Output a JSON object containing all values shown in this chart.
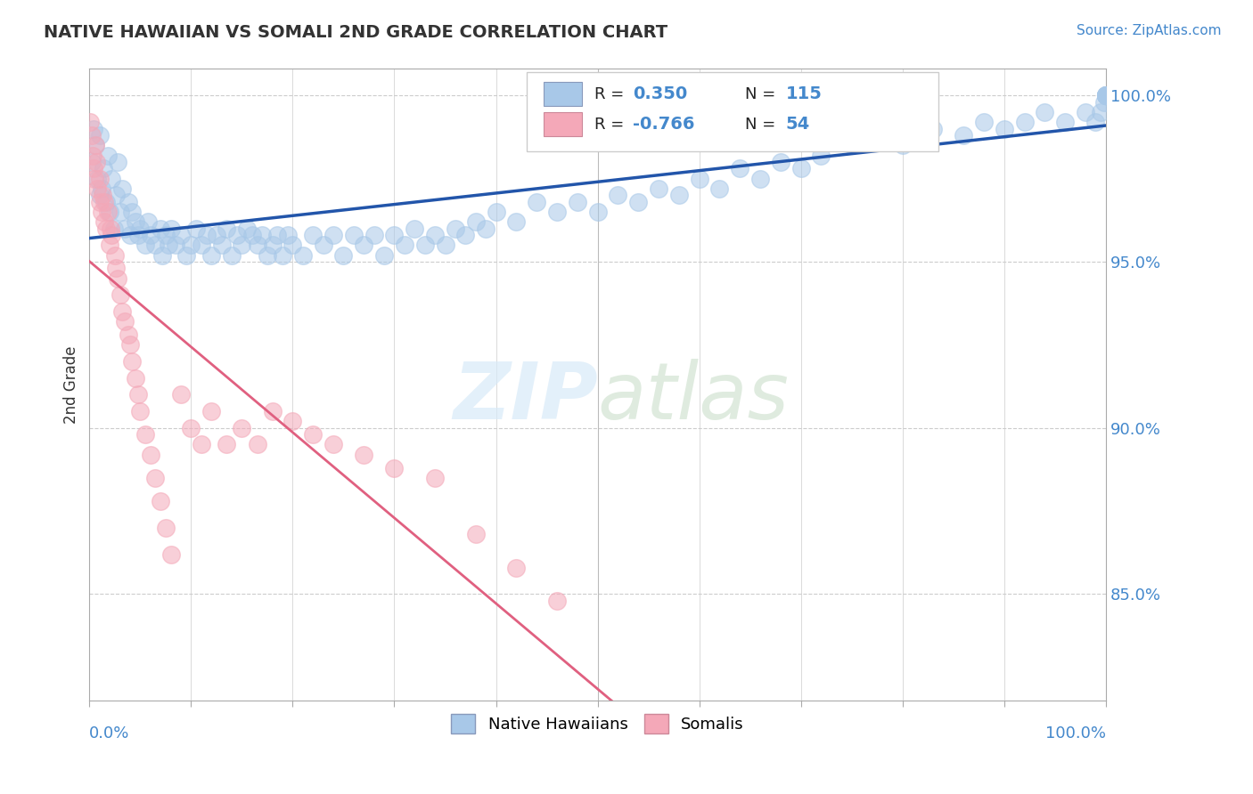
{
  "title": "NATIVE HAWAIIAN VS SOMALI 2ND GRADE CORRELATION CHART",
  "source": "Source: ZipAtlas.com",
  "ylabel": "2nd Grade",
  "ylabel_right_ticks": [
    "100.0%",
    "95.0%",
    "90.0%",
    "85.0%"
  ],
  "ylabel_right_vals": [
    1.0,
    0.95,
    0.9,
    0.85
  ],
  "xmin": 0.0,
  "xmax": 1.0,
  "ymin": 0.818,
  "ymax": 1.008,
  "blue_R": 0.35,
  "blue_N": 115,
  "pink_R": -0.766,
  "pink_N": 54,
  "blue_color": "#A8C8E8",
  "pink_color": "#F4A8B8",
  "blue_line_color": "#2255AA",
  "pink_line_color": "#E06080",
  "legend_label_blue": "Native Hawaiians",
  "legend_label_pink": "Somalis",
  "background_color": "#ffffff",
  "blue_scatter_x": [
    0.002,
    0.004,
    0.006,
    0.008,
    0.01,
    0.01,
    0.012,
    0.014,
    0.016,
    0.018,
    0.02,
    0.022,
    0.024,
    0.026,
    0.028,
    0.03,
    0.032,
    0.035,
    0.038,
    0.04,
    0.042,
    0.045,
    0.048,
    0.05,
    0.055,
    0.058,
    0.06,
    0.065,
    0.07,
    0.072,
    0.075,
    0.078,
    0.08,
    0.085,
    0.09,
    0.095,
    0.1,
    0.105,
    0.11,
    0.115,
    0.12,
    0.125,
    0.13,
    0.135,
    0.14,
    0.145,
    0.15,
    0.155,
    0.16,
    0.165,
    0.17,
    0.175,
    0.18,
    0.185,
    0.19,
    0.195,
    0.2,
    0.21,
    0.22,
    0.23,
    0.24,
    0.25,
    0.26,
    0.27,
    0.28,
    0.29,
    0.3,
    0.31,
    0.32,
    0.33,
    0.34,
    0.35,
    0.36,
    0.37,
    0.38,
    0.39,
    0.4,
    0.42,
    0.44,
    0.46,
    0.48,
    0.5,
    0.52,
    0.54,
    0.56,
    0.58,
    0.6,
    0.62,
    0.64,
    0.66,
    0.68,
    0.7,
    0.72,
    0.75,
    0.78,
    0.8,
    0.83,
    0.86,
    0.88,
    0.9,
    0.92,
    0.94,
    0.96,
    0.98,
    0.99,
    0.995,
    0.998,
    1.0,
    1.0,
    1.0,
    1.0,
    1.0,
    1.0,
    1.0,
    1.0
  ],
  "blue_scatter_y": [
    0.98,
    0.99,
    0.985,
    0.975,
    0.97,
    0.988,
    0.972,
    0.978,
    0.968,
    0.982,
    0.965,
    0.975,
    0.96,
    0.97,
    0.98,
    0.965,
    0.972,
    0.96,
    0.968,
    0.958,
    0.965,
    0.962,
    0.958,
    0.96,
    0.955,
    0.962,
    0.958,
    0.955,
    0.96,
    0.952,
    0.958,
    0.955,
    0.96,
    0.955,
    0.958,
    0.952,
    0.955,
    0.96,
    0.955,
    0.958,
    0.952,
    0.958,
    0.955,
    0.96,
    0.952,
    0.958,
    0.955,
    0.96,
    0.958,
    0.955,
    0.958,
    0.952,
    0.955,
    0.958,
    0.952,
    0.958,
    0.955,
    0.952,
    0.958,
    0.955,
    0.958,
    0.952,
    0.958,
    0.955,
    0.958,
    0.952,
    0.958,
    0.955,
    0.96,
    0.955,
    0.958,
    0.955,
    0.96,
    0.958,
    0.962,
    0.96,
    0.965,
    0.962,
    0.968,
    0.965,
    0.968,
    0.965,
    0.97,
    0.968,
    0.972,
    0.97,
    0.975,
    0.972,
    0.978,
    0.975,
    0.98,
    0.978,
    0.982,
    0.985,
    0.988,
    0.985,
    0.99,
    0.988,
    0.992,
    0.99,
    0.992,
    0.995,
    0.992,
    0.995,
    0.992,
    0.995,
    0.998,
    1.0,
    1.0,
    1.0,
    1.0,
    1.0,
    1.0,
    1.0,
    1.0
  ],
  "pink_scatter_x": [
    0.001,
    0.002,
    0.003,
    0.004,
    0.005,
    0.006,
    0.007,
    0.008,
    0.01,
    0.01,
    0.012,
    0.013,
    0.015,
    0.015,
    0.016,
    0.018,
    0.02,
    0.021,
    0.022,
    0.025,
    0.026,
    0.028,
    0.03,
    0.032,
    0.035,
    0.038,
    0.04,
    0.042,
    0.045,
    0.048,
    0.05,
    0.055,
    0.06,
    0.065,
    0.07,
    0.075,
    0.08,
    0.09,
    0.1,
    0.11,
    0.12,
    0.135,
    0.15,
    0.165,
    0.18,
    0.2,
    0.22,
    0.24,
    0.27,
    0.3,
    0.34,
    0.38,
    0.42,
    0.46
  ],
  "pink_scatter_y": [
    0.992,
    0.988,
    0.982,
    0.978,
    0.975,
    0.985,
    0.98,
    0.972,
    0.968,
    0.975,
    0.965,
    0.97,
    0.962,
    0.968,
    0.96,
    0.965,
    0.955,
    0.96,
    0.958,
    0.952,
    0.948,
    0.945,
    0.94,
    0.935,
    0.932,
    0.928,
    0.925,
    0.92,
    0.915,
    0.91,
    0.905,
    0.898,
    0.892,
    0.885,
    0.878,
    0.87,
    0.862,
    0.91,
    0.9,
    0.895,
    0.905,
    0.895,
    0.9,
    0.895,
    0.905,
    0.902,
    0.898,
    0.895,
    0.892,
    0.888,
    0.885,
    0.868,
    0.858,
    0.848
  ]
}
